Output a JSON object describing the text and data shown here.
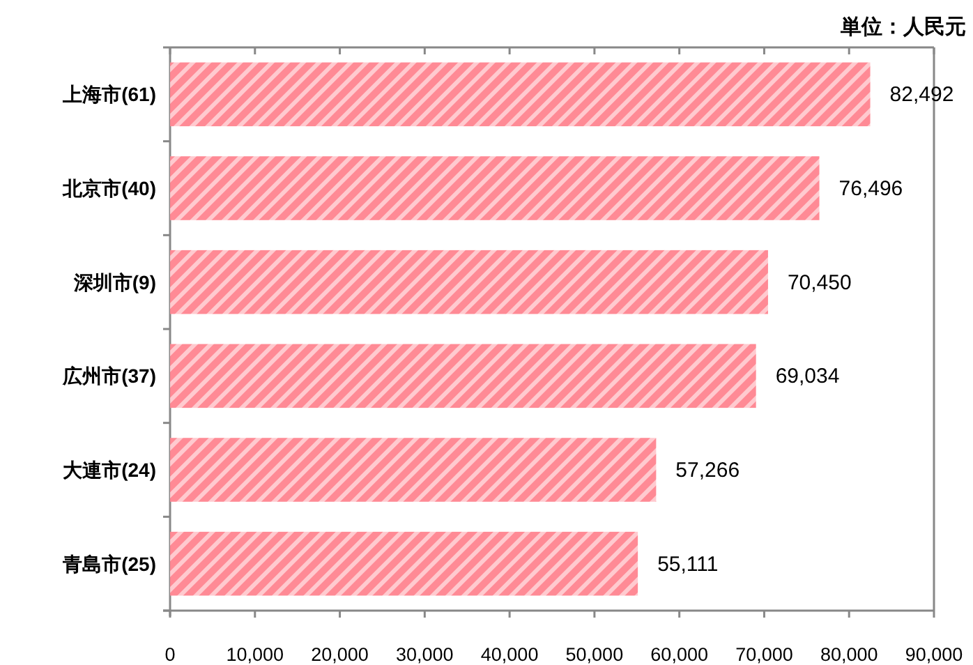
{
  "chart_data": {
    "type": "bar",
    "orientation": "horizontal",
    "categories": [
      "上海市(61)",
      "北京市(40)",
      "深圳市(9)",
      "広州市(37)",
      "大連市(24)",
      "青島市(25)"
    ],
    "values": [
      82492,
      76496,
      70450,
      69034,
      57266,
      55111
    ],
    "value_labels": [
      "82,492",
      "76,496",
      "70,450",
      "69,034",
      "57,266",
      "55,111"
    ],
    "color": "#ff8a95",
    "xlim": [
      0,
      90000
    ],
    "xticks": [
      {
        "value": 0,
        "label": "0"
      },
      {
        "value": 10000,
        "label": "10,000"
      },
      {
        "value": 20000,
        "label": "20,000"
      },
      {
        "value": 30000,
        "label": "30,000"
      },
      {
        "value": 40000,
        "label": "40,000"
      },
      {
        "value": 50000,
        "label": "50,000"
      },
      {
        "value": 60000,
        "label": "60,000"
      },
      {
        "value": 70000,
        "label": "70,000"
      },
      {
        "value": 80000,
        "label": "80,000"
      },
      {
        "value": 90000,
        "label": "90,000"
      }
    ],
    "annotations": [
      "単位：人民元"
    ],
    "grid": false
  }
}
